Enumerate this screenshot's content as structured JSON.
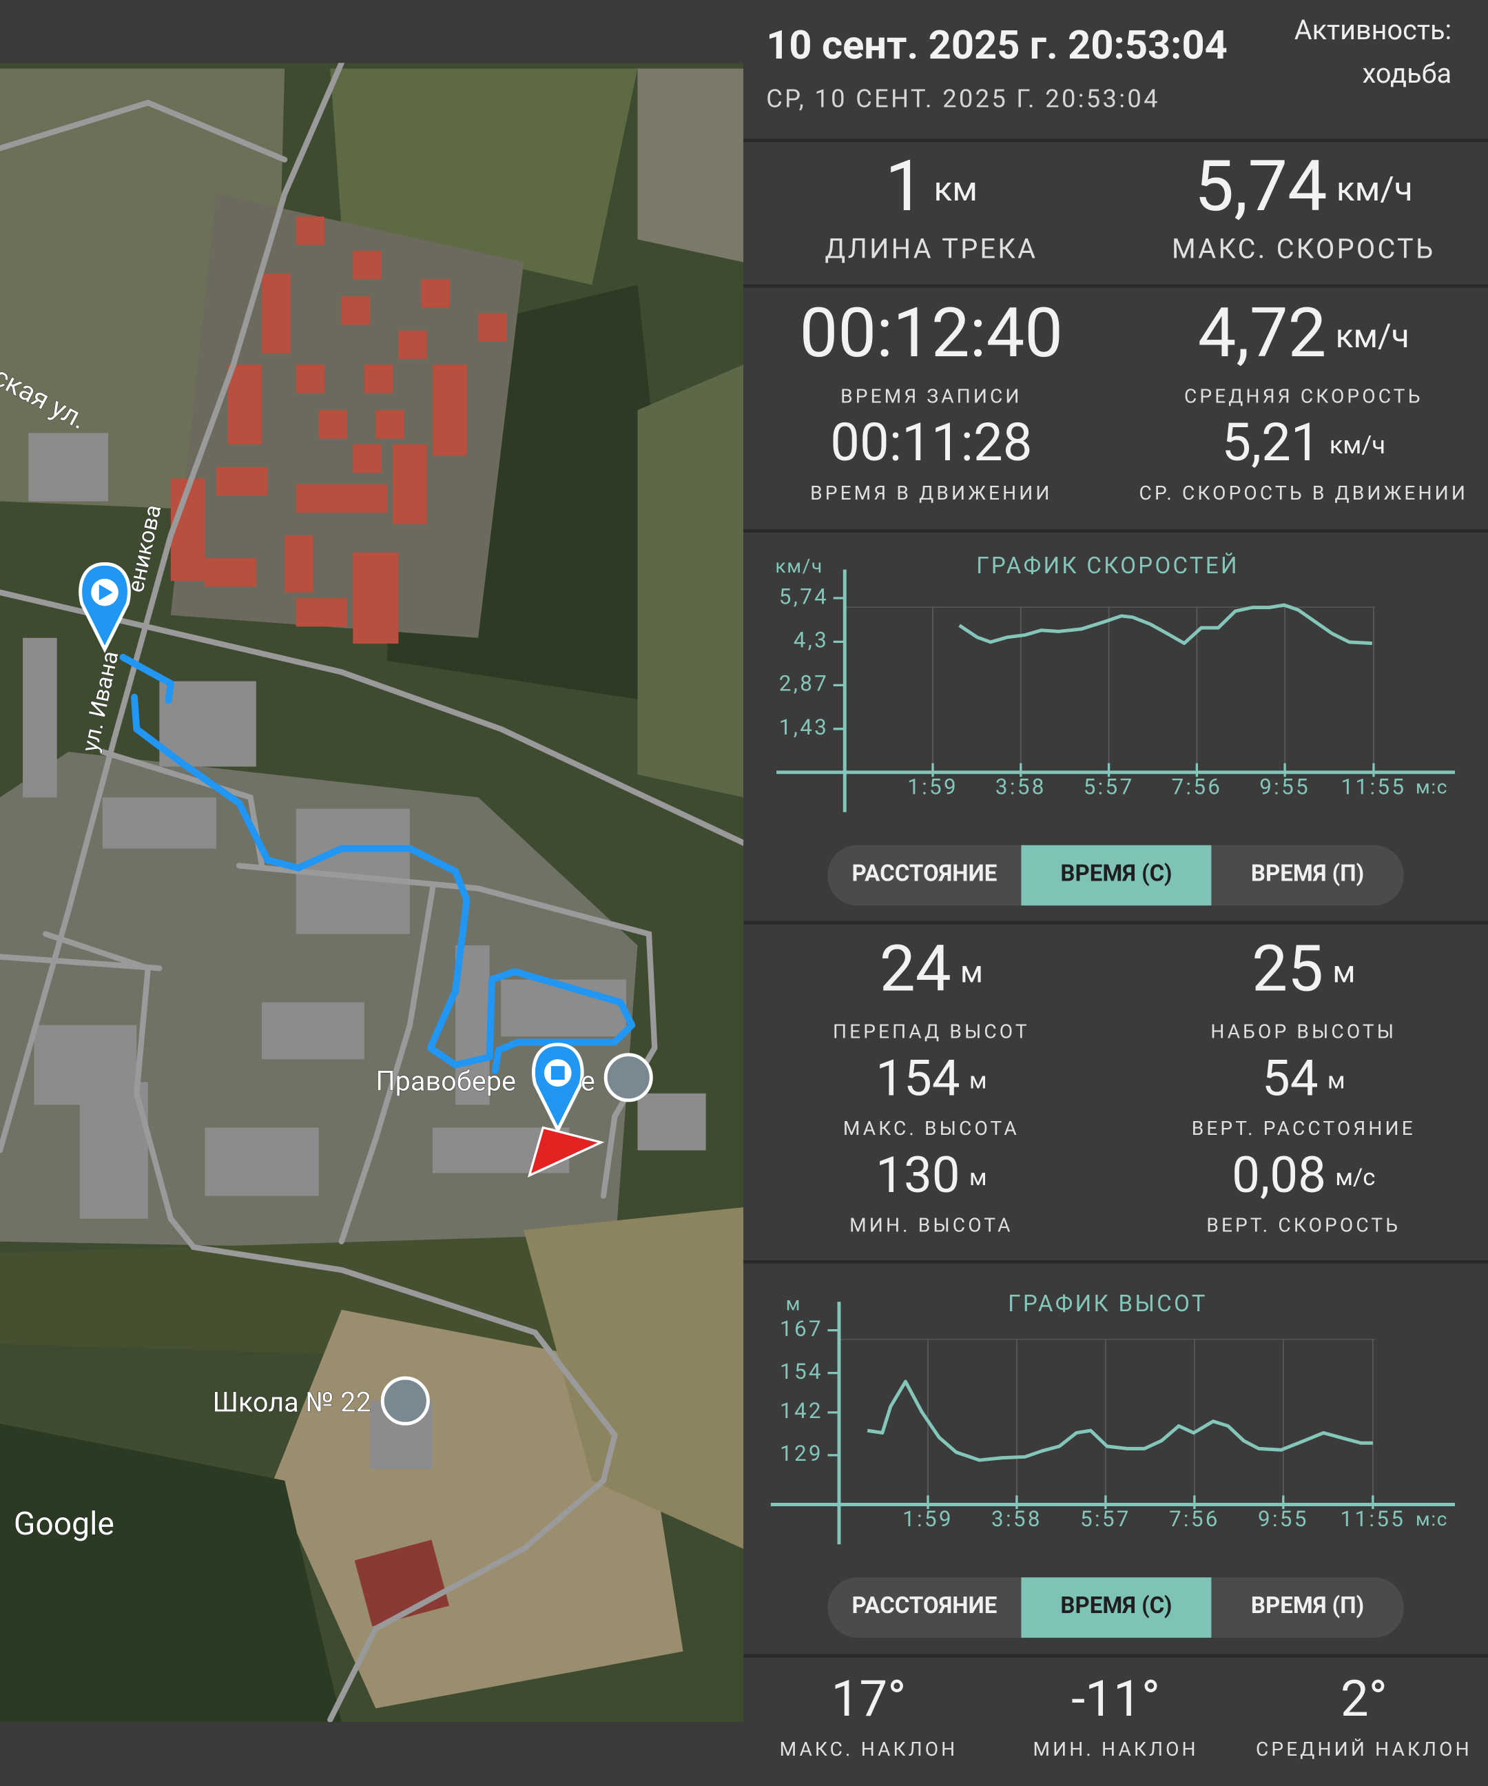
{
  "header": {
    "title": "10 сент. 2025 г. 20:53:04",
    "subtitle": "СР, 10 СЕНТ. 2025 Г. 20:53:04",
    "activity_label": "Активность:",
    "activity_value": "ходьба"
  },
  "stats": [
    {
      "value": "1",
      "unit": "км",
      "label": "ДЛИНА ТРЕКА"
    },
    {
      "value": "5,74",
      "unit": "км/ч",
      "label": "МАКС. СКОРОСТЬ"
    },
    {
      "value": "00:12:40",
      "label": "ВРЕМЯ ЗАПИСИ"
    },
    {
      "value": "4,72",
      "unit": "км/ч",
      "label": "СРЕДНЯЯ СКОРОСТЬ"
    },
    {
      "value": "00:11:28",
      "label": "ВРЕМЯ В ДВИЖЕНИИ"
    },
    {
      "value": "5,21",
      "unit": "км/ч",
      "label": "СР. СКОРОСТЬ В ДВИЖЕНИИ"
    },
    {
      "value": "24",
      "unit": "м",
      "label": "ПЕРЕПАД ВЫСОТ"
    },
    {
      "value": "25",
      "unit": "м",
      "label": "НАБОР ВЫСОТЫ"
    },
    {
      "value": "154",
      "unit": "м",
      "label": "МАКС. ВЫСОТА"
    },
    {
      "value": "54",
      "unit": "м",
      "label": "ВЕРТ. РАССТОЯНИЕ"
    },
    {
      "value": "130",
      "unit": "м",
      "label": "МИН. ВЫСОТА"
    },
    {
      "value": "0,08",
      "unit": "м/с",
      "label": "ВЕРТ. СКОРОСТЬ"
    }
  ],
  "slope": [
    {
      "value": "17°",
      "label": "МАКС. НАКЛОН"
    },
    {
      "value": "-11°",
      "label": "МИН. НАКЛОН"
    },
    {
      "value": "2°",
      "label": "СРЕДНИЙ НАКЛОН"
    }
  ],
  "map": {
    "labels": [
      "ская ул.",
      "ул. Ивана",
      "еникова",
      "Правобере",
      "е",
      "Школа № 22"
    ],
    "attribution": "Google"
  },
  "toggles": [
    {
      "options": [
        "РАССТОЯНИЕ",
        "ВРЕМЯ (С)",
        "ВРЕМЯ (П)"
      ],
      "selected": 1
    },
    {
      "options": [
        "РАССТОЯНИЕ",
        "ВРЕМЯ (С)",
        "ВРЕМЯ (П)"
      ],
      "selected": 1
    }
  ],
  "chart_data": [
    {
      "type": "line",
      "title": "ГРАФИК СКОРОСТЕЙ",
      "y_unit": "км/ч",
      "x_unit": "м:с",
      "grid": true,
      "x": [
        155,
        179,
        197,
        220,
        243,
        266,
        289,
        320,
        351,
        374,
        389,
        413,
        436,
        459,
        482,
        505,
        528,
        551,
        574,
        594,
        613,
        636,
        659,
        682,
        713
      ],
      "series": [
        {
          "color": "#84c7ba",
          "values": [
            4.84,
            4.45,
            4.29,
            4.45,
            4.52,
            4.68,
            4.64,
            4.72,
            4.96,
            5.15,
            5.11,
            4.88,
            4.57,
            4.25,
            4.76,
            4.76,
            5.31,
            5.43,
            5.43,
            5.51,
            5.35,
            4.96,
            4.57,
            4.29,
            4.25
          ]
        }
      ],
      "xlim": [
        0,
        825
      ],
      "ylim": [
        0,
        5.74
      ],
      "xticks": [
        {
          "value": 119,
          "label": "1:59"
        },
        {
          "value": 238,
          "label": "3:58"
        },
        {
          "value": 357,
          "label": "5:57"
        },
        {
          "value": 476,
          "label": "7:56"
        },
        {
          "value": 595,
          "label": "9:55"
        },
        {
          "value": 715,
          "label": "11:55"
        }
      ],
      "yticks": [
        {
          "value": 1.43,
          "label": "1,43"
        },
        {
          "value": 2.87,
          "label": "2,87"
        },
        {
          "value": 4.3,
          "label": "4,3"
        },
        {
          "value": 5.74,
          "label": "5,74"
        }
      ]
    },
    {
      "type": "line",
      "title": "ГРАФИК ВЫСОТ",
      "y_unit": "м",
      "x_unit": "м:с",
      "grid": true,
      "x": [
        38,
        58,
        69,
        89,
        111,
        134,
        157,
        188,
        218,
        249,
        272,
        295,
        318,
        337,
        359,
        386,
        409,
        432,
        455,
        475,
        501,
        521,
        542,
        562,
        592,
        623,
        649,
        676,
        699,
        715
      ],
      "series": [
        {
          "color": "#84c7ba",
          "values": [
            136.5,
            135.8,
            143.8,
            151.4,
            142.1,
            134.4,
            129.9,
            127.5,
            128.2,
            128.5,
            130.3,
            131.7,
            135.8,
            136.5,
            131.7,
            131,
            131,
            133.4,
            137.9,
            135.8,
            139.3,
            137.9,
            133.4,
            131,
            130.6,
            133.4,
            135.8,
            134.1,
            132.7,
            132.7
          ]
        }
      ],
      "xlim": [
        0,
        825
      ],
      "ylim": [
        114,
        167
      ],
      "xticks": [
        {
          "value": 119,
          "label": "1:59"
        },
        {
          "value": 238,
          "label": "3:58"
        },
        {
          "value": 357,
          "label": "5:57"
        },
        {
          "value": 476,
          "label": "7:56"
        },
        {
          "value": 595,
          "label": "9:55"
        },
        {
          "value": 715,
          "label": "11:55"
        }
      ],
      "yticks": [
        129,
        142,
        154,
        167
      ]
    }
  ]
}
